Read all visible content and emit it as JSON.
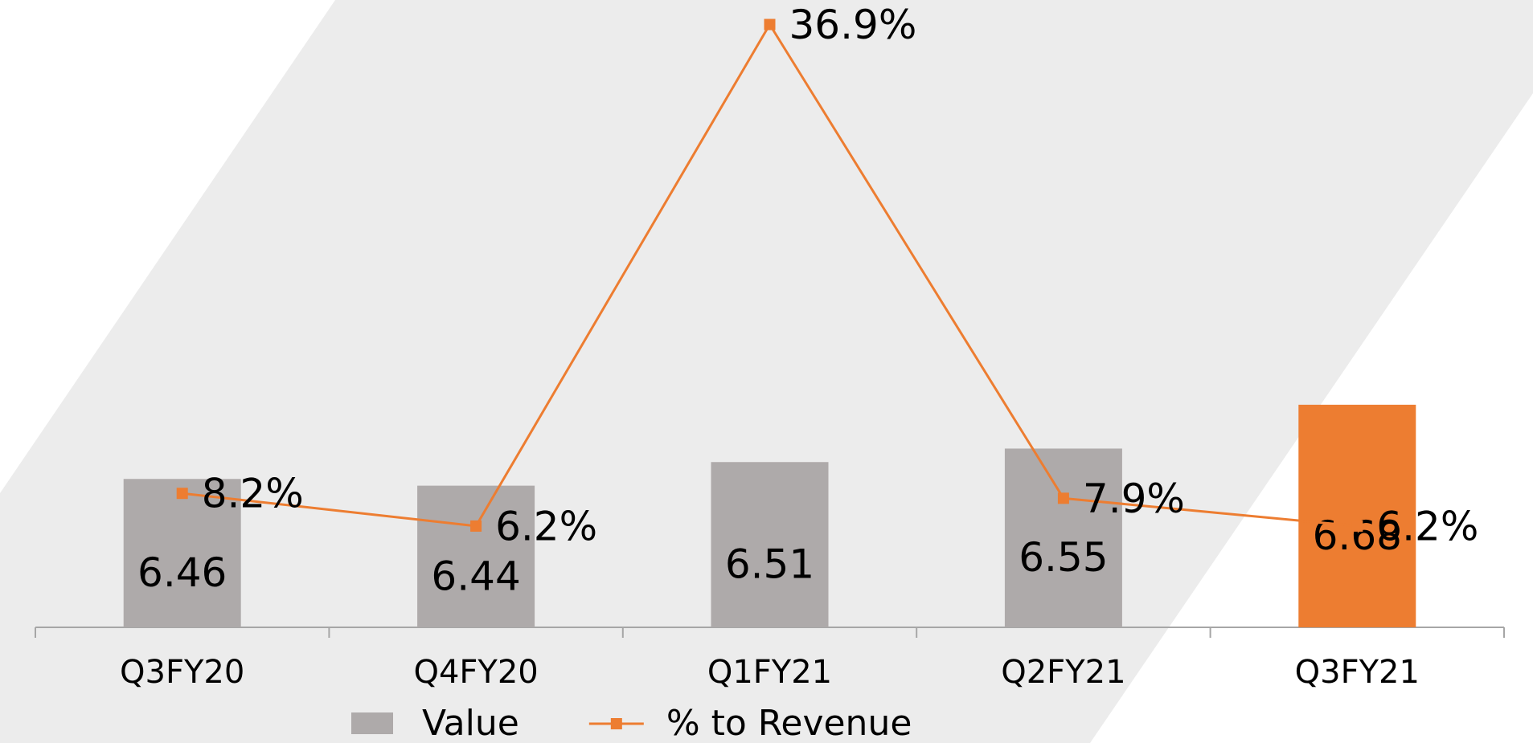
{
  "chart_data": {
    "type": "bar_line",
    "categories": [
      "Q3FY20",
      "Q4FY20",
      "Q1FY21",
      "Q2FY21",
      "Q3FY21"
    ],
    "series": [
      {
        "name": "Value",
        "type": "bar",
        "color": "#aeaaaa",
        "colors": [
          "#aeaaaa",
          "#aeaaaa",
          "#aeaaaa",
          "#aeaaaa",
          "#ed7d31"
        ],
        "values": [
          6.46,
          6.44,
          6.51,
          6.55,
          6.68
        ]
      },
      {
        "name": "% to Revenue",
        "type": "line",
        "axis": "y2",
        "color": "#ed7d31",
        "values": [
          8.2,
          6.2,
          36.9,
          7.9,
          6.2
        ],
        "value_labels": [
          "8.2%",
          "6.2%",
          "36.9%",
          "7.9%",
          "6.2%"
        ]
      }
    ],
    "ylim": [
      6.02,
      7.88
    ],
    "y2lim": [
      0,
      38.4
    ],
    "legend": "bottom"
  }
}
